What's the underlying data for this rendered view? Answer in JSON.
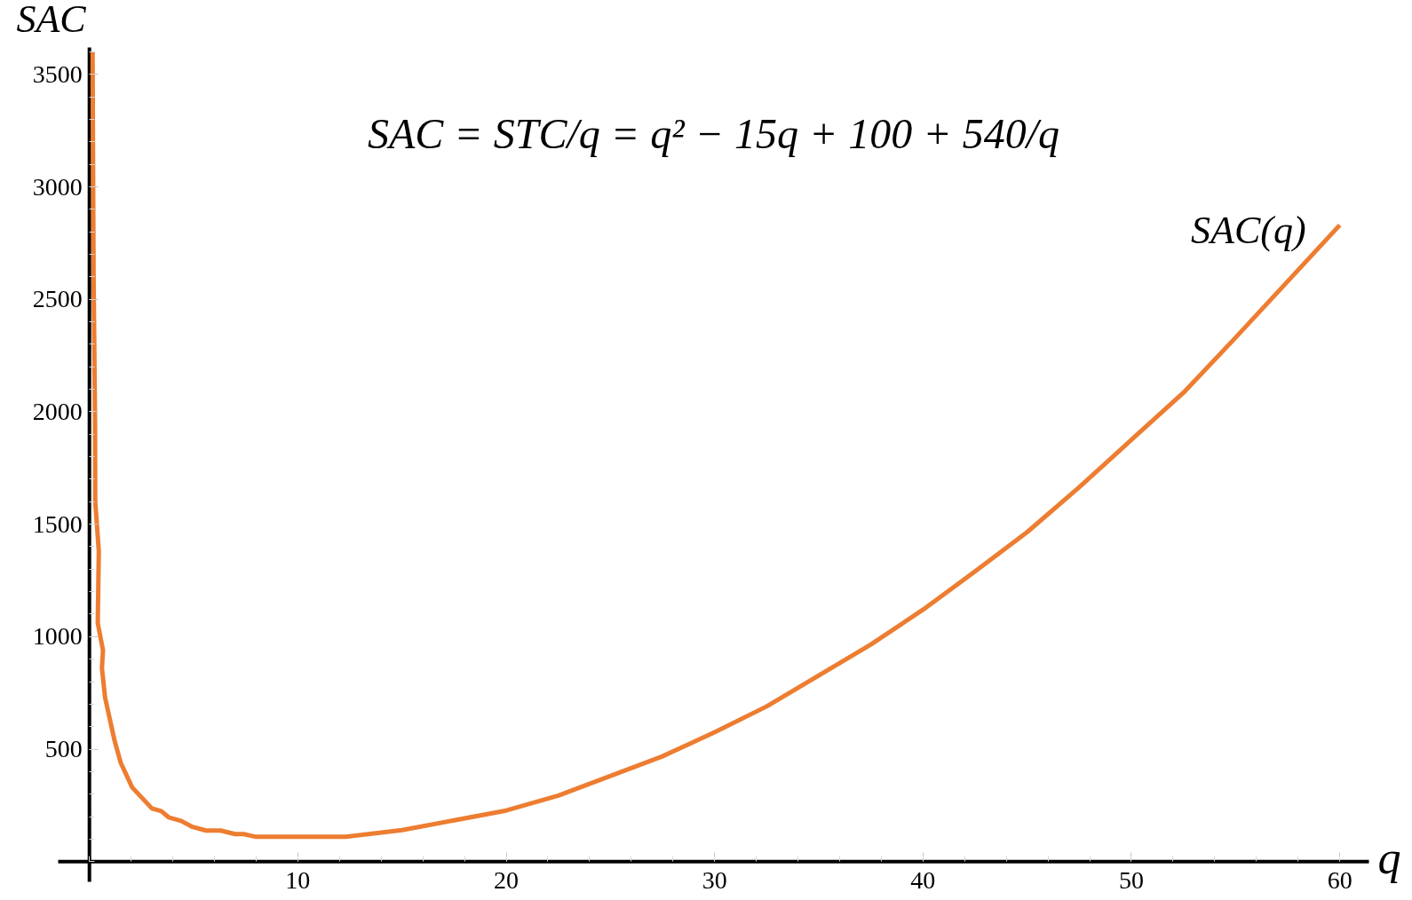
{
  "chart_data": {
    "type": "line",
    "title": "SAC = STC/q = q² − 15q + 100 + 540/q",
    "xlabel": "q",
    "ylabel": "SAC",
    "x": [
      0.15,
      0.2,
      0.27,
      0.28,
      0.45,
      0.4,
      0.65,
      0.6,
      0.75,
      1.2,
      1.5,
      2.05,
      3.0,
      3.45,
      3.8,
      4.4,
      4.95,
      5.6,
      6.3,
      7.0,
      7.4,
      8.0,
      12.3,
      15,
      20,
      22.5,
      27.5,
      30,
      32.5,
      37.5,
      40,
      42.5,
      45,
      47.5,
      52.5,
      55,
      60
    ],
    "series": [
      {
        "name": "SAC(q)",
        "color": "#ed7d31",
        "values": [
          3600,
          2600,
          1950,
          1600,
          1380,
          1060,
          940,
          860,
          730,
          540,
          440,
          330,
          236,
          224,
          197,
          181,
          154,
          138,
          138,
          122,
          122,
          110,
          110,
          140,
          227,
          293,
          468,
          575,
          690,
          965,
          1120,
          1290,
          1465,
          1665,
          2085,
          2330,
          2830
        ]
      }
    ],
    "xlim": [
      -1.5,
      61.4
    ],
    "ylim": [
      -90,
      3620
    ],
    "xticks": [
      10,
      20,
      30,
      40,
      50,
      60
    ],
    "yticks": [
      500,
      1000,
      1500,
      2000,
      2500,
      3000,
      3500
    ]
  }
}
